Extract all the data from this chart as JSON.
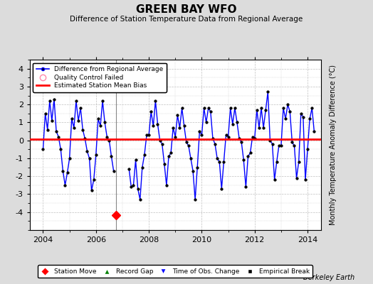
{
  "title": "GREEN BAY WFO",
  "subtitle": "Difference of Station Temperature Data from Regional Average",
  "ylabel_right": "Monthly Temperature Anomaly Difference (°C)",
  "xlim": [
    2003.5,
    2014.5
  ],
  "ylim": [
    -5,
    4.5
  ],
  "yticks": [
    -4,
    -3,
    -2,
    -1,
    0,
    1,
    2,
    3,
    4
  ],
  "xticks": [
    2004,
    2006,
    2008,
    2010,
    2012,
    2014
  ],
  "mean_bias": 0.05,
  "station_move_x": 2006.75,
  "station_move_y": -4.15,
  "gap_start": 2006.75,
  "gap_end": 2007.25,
  "line_color": "#0000FF",
  "bias_color": "#FF0000",
  "background_color": "#DCDCDC",
  "plot_bg_color": "#FFFFFF",
  "watermark": "Berkeley Earth",
  "gap_line_color": "#888888",
  "data_x": [
    2004.0,
    2004.083,
    2004.167,
    2004.25,
    2004.333,
    2004.417,
    2004.5,
    2004.583,
    2004.667,
    2004.75,
    2004.833,
    2004.917,
    2005.0,
    2005.083,
    2005.167,
    2005.25,
    2005.333,
    2005.417,
    2005.5,
    2005.583,
    2005.667,
    2005.75,
    2005.833,
    2005.917,
    2006.0,
    2006.083,
    2006.167,
    2006.25,
    2006.333,
    2006.417,
    2006.5,
    2006.583,
    2006.667,
    2007.25,
    2007.333,
    2007.417,
    2007.5,
    2007.583,
    2007.667,
    2007.75,
    2007.833,
    2007.917,
    2008.0,
    2008.083,
    2008.167,
    2008.25,
    2008.333,
    2008.417,
    2008.5,
    2008.583,
    2008.667,
    2008.75,
    2008.833,
    2008.917,
    2009.0,
    2009.083,
    2009.167,
    2009.25,
    2009.333,
    2009.417,
    2009.5,
    2009.583,
    2009.667,
    2009.75,
    2009.833,
    2009.917,
    2010.0,
    2010.083,
    2010.167,
    2010.25,
    2010.333,
    2010.417,
    2010.5,
    2010.583,
    2010.667,
    2010.75,
    2010.833,
    2010.917,
    2011.0,
    2011.083,
    2011.167,
    2011.25,
    2011.333,
    2011.417,
    2011.5,
    2011.583,
    2011.667,
    2011.75,
    2011.833,
    2011.917,
    2012.0,
    2012.083,
    2012.167,
    2012.25,
    2012.333,
    2012.417,
    2012.5,
    2012.583,
    2012.667,
    2012.75,
    2012.833,
    2012.917,
    2013.0,
    2013.083,
    2013.167,
    2013.25,
    2013.333,
    2013.417,
    2013.5,
    2013.583,
    2013.667,
    2013.75,
    2013.833,
    2013.917,
    2014.0,
    2014.083,
    2014.167,
    2014.25
  ],
  "data_y": [
    -0.5,
    1.5,
    0.6,
    2.2,
    1.1,
    2.3,
    0.5,
    0.2,
    -0.5,
    -1.7,
    -2.5,
    -1.8,
    -1.0,
    1.2,
    0.7,
    2.2,
    1.1,
    1.8,
    0.6,
    0.1,
    -0.6,
    -1.0,
    -2.8,
    -2.2,
    -0.8,
    1.2,
    0.8,
    2.2,
    1.0,
    0.2,
    0.0,
    -0.9,
    -1.7,
    -1.6,
    -2.6,
    -2.5,
    -1.1,
    -2.7,
    -3.3,
    -1.5,
    -0.8,
    0.3,
    0.3,
    1.6,
    0.8,
    2.2,
    0.9,
    0.0,
    -0.2,
    -1.3,
    -2.5,
    -0.9,
    -0.7,
    0.7,
    0.2,
    1.4,
    0.7,
    1.8,
    0.8,
    -0.1,
    -0.3,
    -1.0,
    -1.7,
    -3.3,
    -1.5,
    0.5,
    0.3,
    1.8,
    1.0,
    1.8,
    1.6,
    0.1,
    -0.2,
    -1.0,
    -1.2,
    -2.7,
    -1.2,
    0.3,
    0.2,
    1.8,
    0.9,
    1.8,
    1.0,
    0.1,
    -0.1,
    -1.1,
    -2.6,
    -0.9,
    -0.7,
    0.2,
    0.1,
    1.7,
    0.7,
    1.8,
    0.7,
    1.7,
    2.7,
    0.0,
    -0.2,
    -2.2,
    -1.2,
    -0.3,
    -0.3,
    1.8,
    1.2,
    2.0,
    1.6,
    -0.1,
    -0.3,
    -2.1,
    -1.2,
    1.5,
    1.3,
    -2.2,
    -0.5,
    1.2,
    1.8,
    0.5
  ]
}
